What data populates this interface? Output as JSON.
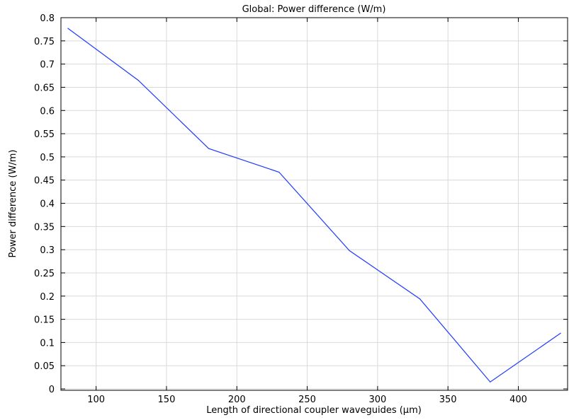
{
  "chart_data": {
    "type": "line",
    "title": "Global: Power difference (W/m)",
    "xlabel": "Length of directional coupler waveguides (µm)",
    "ylabel": "Power difference (W/m)",
    "xlim": [
      75,
      435
    ],
    "ylim": [
      -0.003,
      0.8
    ],
    "grid": true,
    "x_ticks": [
      100,
      150,
      200,
      250,
      300,
      350,
      400
    ],
    "x_tick_labels": [
      "100",
      "150",
      "200",
      "250",
      "300",
      "350",
      "400"
    ],
    "y_ticks": [
      0,
      0.05,
      0.1,
      0.15,
      0.2,
      0.25,
      0.3,
      0.35,
      0.4,
      0.45,
      0.5,
      0.55,
      0.6,
      0.65,
      0.7,
      0.75,
      0.8
    ],
    "y_tick_labels": [
      "0",
      "0.05",
      "0.1",
      "0.15",
      "0.2",
      "0.25",
      "0.3",
      "0.35",
      "0.4",
      "0.45",
      "0.5",
      "0.55",
      "0.6",
      "0.65",
      "0.7",
      "0.75",
      "0.8"
    ],
    "series": [
      {
        "color": "#1f3bff",
        "x": [
          80,
          130,
          180,
          230,
          280,
          330,
          380,
          430
        ],
        "y": [
          0.777,
          0.665,
          0.518,
          0.467,
          0.298,
          0.194,
          0.015,
          0.12
        ]
      }
    ]
  }
}
